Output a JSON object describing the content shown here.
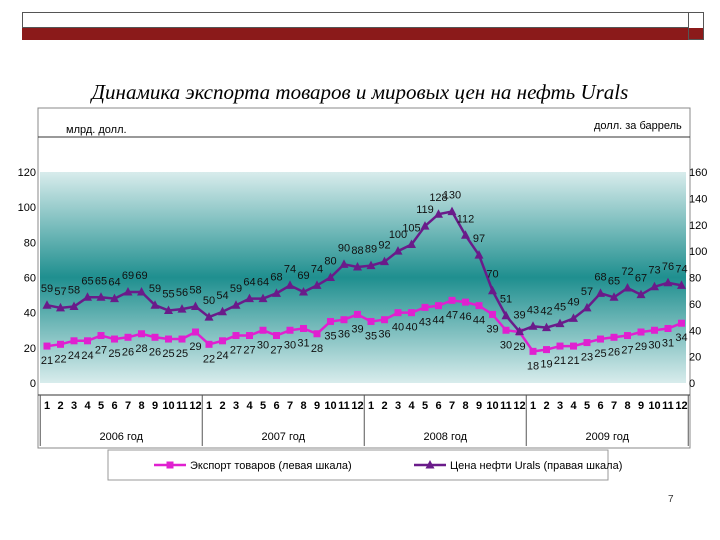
{
  "chart_data": {
    "type": "line",
    "title": "Динамика экспорта  товаров и мировых цен на нефть Urals",
    "left_axis_label": "млрд. долл.",
    "right_axis_label": "долл. за баррель",
    "left_ylim": [
      0,
      120
    ],
    "left_ticks": [
      "0",
      "20",
      "40",
      "60",
      "80",
      "100",
      "120"
    ],
    "right_ylim": [
      0,
      160
    ],
    "right_ticks": [
      "0",
      "20",
      "40",
      "60",
      "80",
      "100",
      "120",
      "140",
      "160"
    ],
    "months": [
      "1",
      "2",
      "3",
      "4",
      "5",
      "6",
      "7",
      "8",
      "9",
      "10",
      "11",
      "12",
      "1",
      "2",
      "3",
      "4",
      "5",
      "6",
      "7",
      "8",
      "9",
      "10",
      "11",
      "12",
      "1",
      "2",
      "3",
      "4",
      "5",
      "6",
      "7",
      "8",
      "9",
      "10",
      "11",
      "12",
      "1",
      "2",
      "3",
      "4",
      "5",
      "6",
      "7",
      "8",
      "9",
      "10",
      "11",
      "12"
    ],
    "years": [
      "2006 год",
      "2007 год",
      "2008 год",
      "2009 год"
    ],
    "series": [
      {
        "name": "Экспорт товаров (левая шкала)",
        "axis": "left",
        "color": "#e020d0",
        "marker": "square",
        "values": [
          21,
          22,
          24,
          24,
          27,
          25,
          26,
          28,
          26,
          25,
          25,
          29,
          22,
          24,
          27,
          27,
          30,
          27,
          30,
          31,
          28,
          35,
          36,
          39,
          35,
          36,
          40,
          40,
          43,
          44,
          47,
          46,
          44,
          39,
          30,
          29,
          18,
          19,
          21,
          21,
          23,
          25,
          26,
          27,
          29,
          30,
          31,
          34
        ]
      },
      {
        "name": "Цена нефти Urals (правая шкала)",
        "axis": "right",
        "color": "#6a1b8a",
        "marker": "triangle",
        "values": [
          59,
          57,
          58,
          65,
          65,
          64,
          69,
          69,
          59,
          55,
          56,
          58,
          50,
          54,
          59,
          64,
          64,
          68,
          74,
          69,
          74,
          80,
          90,
          88,
          89,
          92,
          100,
          105,
          119,
          128,
          130,
          112,
          97,
          70,
          51,
          39,
          43,
          42,
          45,
          49,
          57,
          68,
          65,
          72,
          67,
          73,
          76,
          74
        ]
      }
    ],
    "page_number": "7"
  }
}
